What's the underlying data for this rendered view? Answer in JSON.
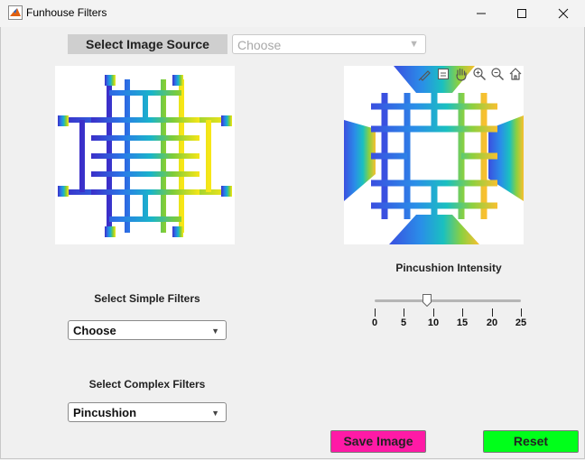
{
  "window": {
    "title": "Funhouse Filters"
  },
  "source": {
    "label": "Select Image Source",
    "dropdown_value": "Choose"
  },
  "simple_filters": {
    "label": "Select Simple Filters",
    "value": "Choose"
  },
  "complex_filters": {
    "label": "Select Complex Filters",
    "value": "Pincushion"
  },
  "intensity": {
    "label": "Pincushion Intensity",
    "value": 9,
    "min": 0,
    "max": 25,
    "ticks": [
      "0",
      "5",
      "10",
      "15",
      "20",
      "25"
    ]
  },
  "buttons": {
    "save": "Save Image",
    "reset": "Reset"
  },
  "colors": {
    "save": "#ff1aa6",
    "reset": "#00ff1a",
    "label_bg": "#cfcfcf"
  },
  "axes_toolbar": [
    "brush-icon",
    "datatip-icon",
    "pan-icon",
    "zoom-in-icon",
    "zoom-out-icon",
    "home-icon"
  ]
}
